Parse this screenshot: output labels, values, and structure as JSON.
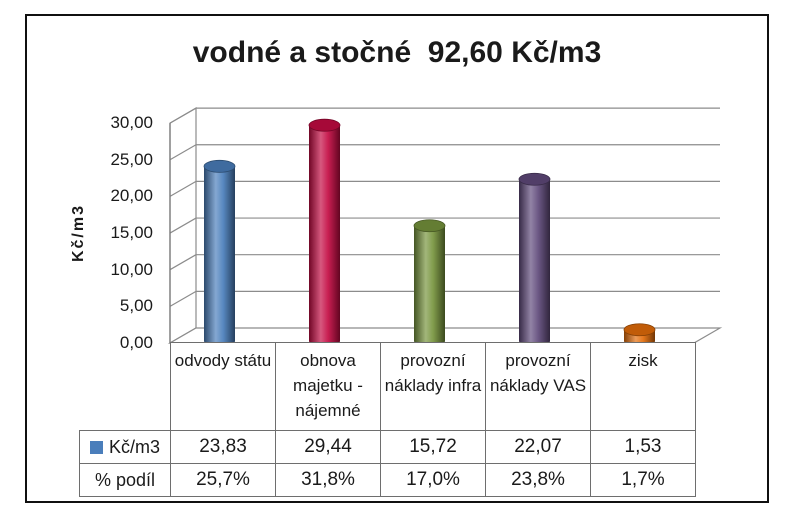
{
  "frame": {
    "border_color": "#101010",
    "background": "#ffffff"
  },
  "chart_data": {
    "type": "bar",
    "style": "3d-cylinder",
    "title": "vodné a stočné  92,60 Kč/m3",
    "xlabel": "",
    "ylabel": "Kč/m3",
    "ylim": [
      0,
      30
    ],
    "grid": true,
    "legend_position": "table-row-label",
    "yticks": {
      "values": [
        0,
        5,
        10,
        15,
        20,
        25,
        30
      ],
      "labels": [
        "0,00",
        "5,00",
        "10,00",
        "15,00",
        "20,00",
        "25,00",
        "30,00"
      ]
    },
    "categories": [
      "odvody státu",
      "obnova majetku - nájemné",
      "provozní náklady infra",
      "provozní náklady VAS",
      "zisk"
    ],
    "series": [
      {
        "name": "Kč/m3",
        "values": [
          23.83,
          29.44,
          15.72,
          22.07,
          1.53
        ]
      }
    ],
    "bar_colors": [
      "#4A7EBB",
      "#C30A42",
      "#76933C",
      "#5F497A",
      "#E36C09"
    ],
    "gridline_color": "#8c8c8c",
    "table": {
      "border_color": "#6e6e6e",
      "rows": [
        {
          "label": "Kč/m3",
          "legend_color": "#4A7EBB",
          "cells": [
            "23,83",
            "29,44",
            "15,72",
            "22,07",
            "1,53"
          ]
        },
        {
          "label": "% podíl",
          "legend_color": null,
          "cells": [
            "25,7%",
            "31,8%",
            "17,0%",
            "23,8%",
            "1,7%"
          ]
        }
      ]
    }
  }
}
